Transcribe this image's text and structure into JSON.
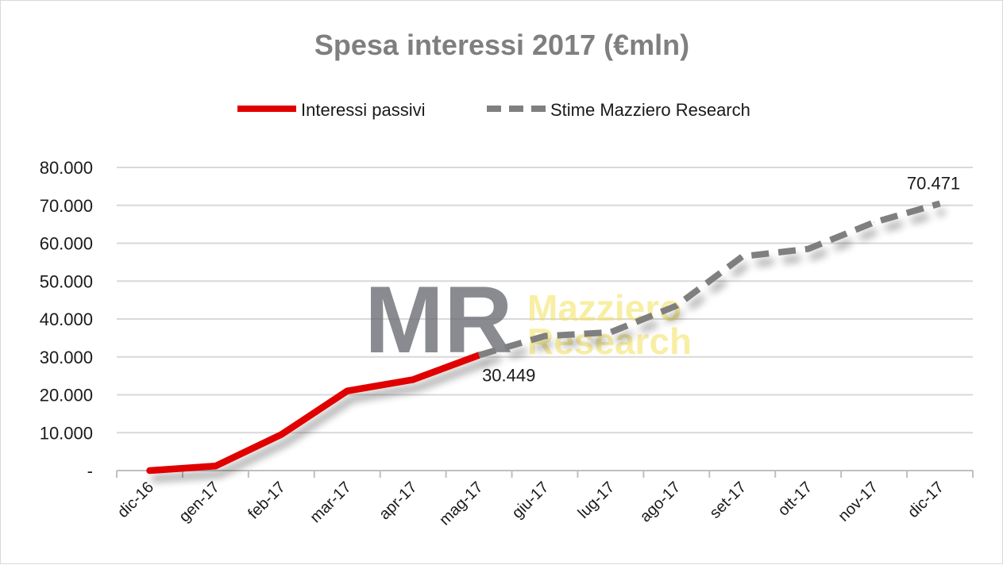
{
  "chart_data": {
    "type": "line",
    "title": "Spesa interessi 2017 (€mln)",
    "xlabel": "",
    "ylabel": "",
    "categories": [
      "dic-16",
      "gen-17",
      "feb-17",
      "mar-17",
      "apr-17",
      "mag-17",
      "giu-17",
      "lug-17",
      "ago-17",
      "set-17",
      "ott-17",
      "nov-17",
      "dic-17"
    ],
    "y_ticks": [
      "-",
      "10.000",
      "20.000",
      "30.000",
      "40.000",
      "50.000",
      "60.000",
      "70.000",
      "80.000"
    ],
    "ylim": [
      0,
      80000
    ],
    "grid": true,
    "legend_position": "top",
    "series": [
      {
        "name": "Interessi passivi",
        "color": "#e00000",
        "style": "solid",
        "values": [
          0,
          1200,
          9500,
          21000,
          24000,
          30449,
          null,
          null,
          null,
          null,
          null,
          null,
          null
        ]
      },
      {
        "name": "Stime Mazziero Research",
        "color": "#7f7f7f",
        "style": "dashed",
        "values": [
          null,
          null,
          null,
          null,
          null,
          30449,
          35500,
          36500,
          43500,
          56500,
          58500,
          65500,
          70471
        ]
      }
    ],
    "annotations": [
      {
        "text": "30.449",
        "category": "mag-17",
        "value": 30449
      },
      {
        "text": "70.471",
        "category": "dic-17",
        "value": 70471
      }
    ],
    "watermark": {
      "logo_letters": "MR",
      "line1": "Mazziero",
      "line2": "Research"
    }
  }
}
